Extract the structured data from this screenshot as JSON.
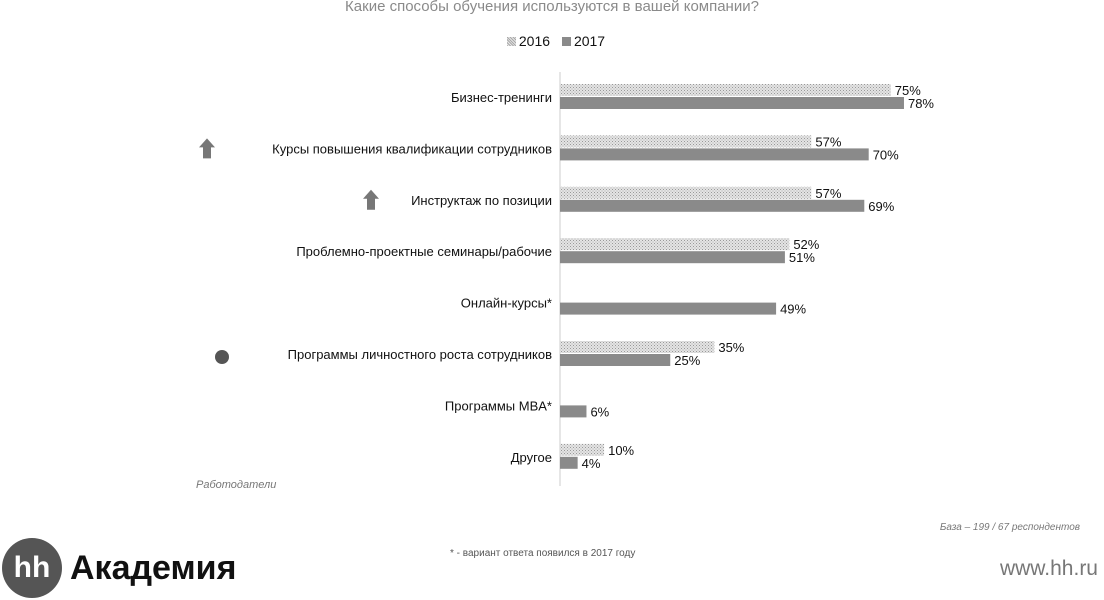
{
  "chart_data": {
    "type": "bar",
    "orientation": "horizontal",
    "title": "Какие способы обучения используются в вашей компании?",
    "categories": [
      "Бизнес-тренинги",
      "Курсы повышения квалификации сотрудников",
      "Инструктаж по позиции",
      "Проблемно-проектные семинары/рабочие",
      "Онлайн-курсы*",
      "Программы личностного роста сотрудников",
      "Программы MBA*",
      "Другое"
    ],
    "series": [
      {
        "name": "2016",
        "values": [
          75,
          57,
          57,
          52,
          null,
          35,
          null,
          10
        ],
        "color": "#c8c8c8",
        "pattern": "dotted"
      },
      {
        "name": "2017",
        "values": [
          78,
          70,
          69,
          51,
          49,
          25,
          6,
          4
        ],
        "color": "#8a8a8a"
      }
    ],
    "value_suffix": "%",
    "xlim": [
      0,
      100
    ],
    "legend_placement": "top",
    "grid": false,
    "markers": [
      {
        "category_index": 1,
        "icon": "up-arrow-icon"
      },
      {
        "category_index": 2,
        "icon": "up-arrow-icon"
      },
      {
        "category_index": 5,
        "icon": "circle-icon"
      }
    ]
  },
  "notes": {
    "respondents": "Работодатели",
    "base": "База – 199 / 67 респондентов",
    "footnote": "* - вариант ответа появился в 2017 году"
  },
  "brand": {
    "logo_mark": "hh",
    "logo_text": "Академия",
    "site": "www.hh.ru"
  }
}
